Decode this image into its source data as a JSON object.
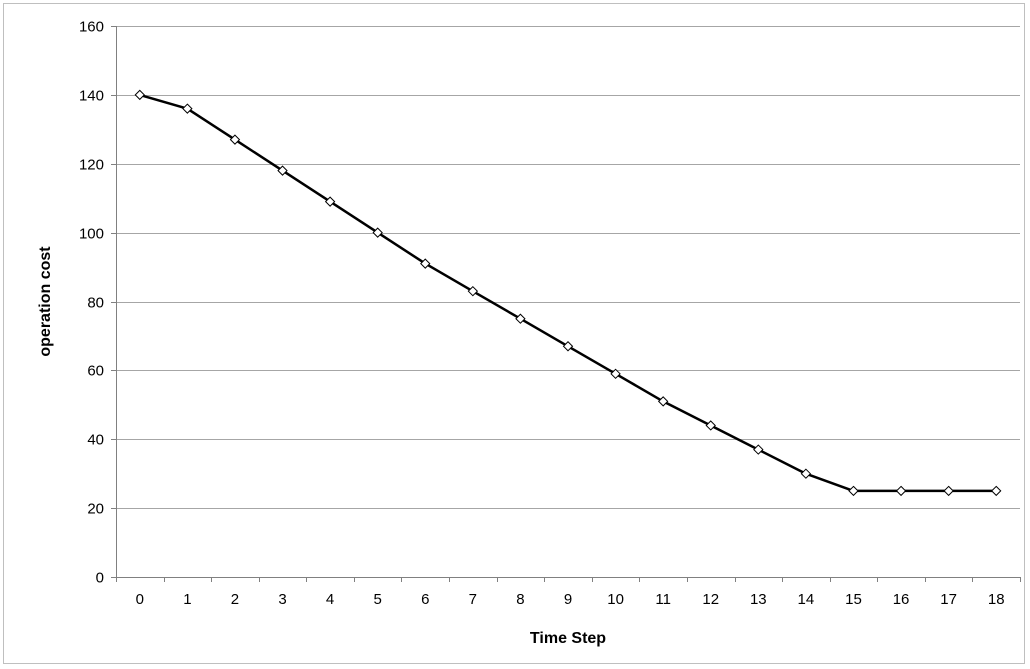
{
  "chart_data": {
    "type": "line",
    "title": "",
    "xlabel": "Time Step",
    "ylabel": "operation cost",
    "x": [
      0,
      1,
      2,
      3,
      4,
      5,
      6,
      7,
      8,
      9,
      10,
      11,
      12,
      13,
      14,
      15,
      16,
      17,
      18
    ],
    "series": [
      {
        "values": [
          140,
          136,
          127,
          118,
          109,
          100,
          91,
          83,
          75,
          67,
          59,
          51,
          44,
          37,
          30,
          25,
          25,
          25,
          25
        ],
        "color": "#000000",
        "marker": "diamond",
        "marker_fill": "#ffffff"
      }
    ],
    "xticks": [
      "0",
      "1",
      "2",
      "3",
      "4",
      "5",
      "6",
      "7",
      "8",
      "9",
      "10",
      "11",
      "12",
      "13",
      "14",
      "15",
      "16",
      "17",
      "18"
    ],
    "yticks": [
      "0",
      "20",
      "40",
      "60",
      "80",
      "100",
      "120",
      "140",
      "160"
    ],
    "ylim": [
      0,
      160
    ],
    "grid": "horizontal",
    "legend": "none",
    "colors": {
      "gridline": "#a6a6a6",
      "axis": "#808080",
      "frame": "#bfbfbf"
    }
  }
}
